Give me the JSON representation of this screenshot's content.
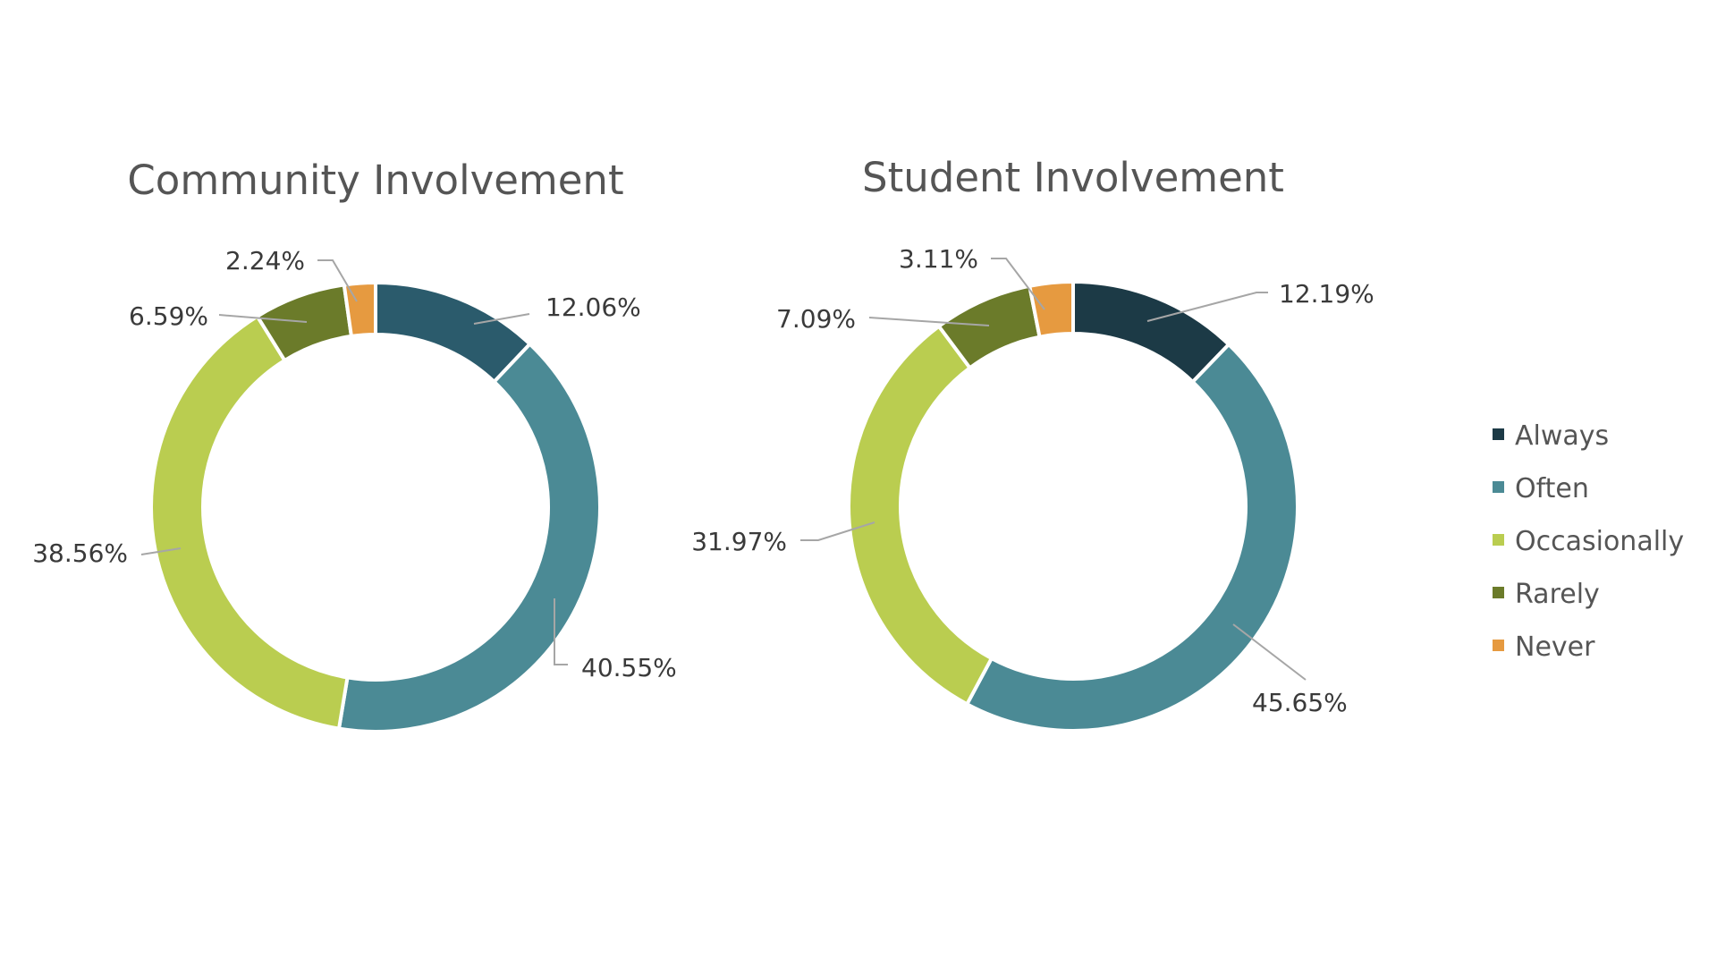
{
  "chart_data": [
    {
      "type": "pie",
      "title": "Community Involvement",
      "slices": [
        {
          "category": "Always",
          "value": 12.06,
          "label": "12.06%",
          "color": "#2b5b6c"
        },
        {
          "category": "Often",
          "value": 40.55,
          "label": "40.55%",
          "color": "#4b8a95"
        },
        {
          "category": "Occasionally",
          "value": 38.56,
          "label": "38.56%",
          "color": "#bacd50"
        },
        {
          "category": "Rarely",
          "value": 6.59,
          "label": "6.59%",
          "color": "#6b7b2a"
        },
        {
          "category": "Never",
          "value": 2.24,
          "label": "2.24%",
          "color": "#e69a40"
        }
      ]
    },
    {
      "type": "pie",
      "title": "Student Involvement",
      "slices": [
        {
          "category": "Always",
          "value": 12.19,
          "label": "12.19%",
          "color": "#1c3a46"
        },
        {
          "category": "Often",
          "value": 45.65,
          "label": "45.65%",
          "color": "#4b8a95"
        },
        {
          "category": "Occasionally",
          "value": 31.97,
          "label": "31.97%",
          "color": "#bacd50"
        },
        {
          "category": "Rarely",
          "value": 7.09,
          "label": "7.09%",
          "color": "#6b7b2a"
        },
        {
          "category": "Never",
          "value": 3.11,
          "label": "3.11%",
          "color": "#e69a40"
        }
      ]
    }
  ],
  "legend": {
    "placement": "right",
    "items": [
      {
        "label": "Always",
        "color": "#1c3a46"
      },
      {
        "label": "Often",
        "color": "#4b8a95"
      },
      {
        "label": "Occasionally",
        "color": "#bacd50"
      },
      {
        "label": "Rarely",
        "color": "#6b7b2a"
      },
      {
        "label": "Never",
        "color": "#e69a40"
      }
    ]
  }
}
